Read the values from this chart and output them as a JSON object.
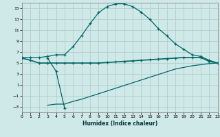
{
  "xlabel": "Humidex (Indice chaleur)",
  "bg_color": "#cfe8e8",
  "grid_color": "#b0d0d0",
  "line_color": "#006666",
  "xlim": [
    0,
    23
  ],
  "ylim": [
    -4,
    16
  ],
  "xticks": [
    0,
    1,
    2,
    3,
    4,
    5,
    6,
    7,
    8,
    9,
    10,
    11,
    12,
    13,
    14,
    15,
    16,
    17,
    18,
    19,
    20,
    21,
    22,
    23
  ],
  "yticks": [
    -3,
    -1,
    1,
    3,
    5,
    7,
    9,
    11,
    13,
    15
  ],
  "curve1_x": [
    0,
    1,
    2,
    3,
    4,
    5,
    6,
    7,
    8,
    9,
    10,
    11,
    12,
    13,
    14,
    15,
    16,
    17,
    18,
    19,
    20,
    21,
    22,
    23
  ],
  "curve1_y": [
    6.0,
    6.0,
    6.0,
    6.2,
    6.5,
    6.5,
    8.0,
    10.0,
    12.2,
    14.2,
    15.3,
    15.8,
    15.8,
    15.3,
    14.3,
    13.0,
    11.3,
    10.0,
    8.5,
    7.5,
    6.5,
    6.2,
    5.5,
    5.0
  ],
  "curve2_x": [
    0,
    1,
    2,
    3,
    4,
    5,
    6,
    7,
    8,
    9,
    10,
    11,
    12,
    13,
    14,
    15,
    16,
    17,
    18,
    19,
    20,
    21,
    22,
    23
  ],
  "curve2_y": [
    5.9,
    5.5,
    5.0,
    5.0,
    5.0,
    5.0,
    5.0,
    5.0,
    5.0,
    5.0,
    5.1,
    5.2,
    5.3,
    5.4,
    5.5,
    5.6,
    5.7,
    5.8,
    5.9,
    6.0,
    6.0,
    6.0,
    5.3,
    5.0
  ],
  "curve3_x": [
    3,
    4,
    5,
    6,
    7,
    8,
    9,
    10,
    11,
    12,
    13,
    14,
    15,
    16,
    17,
    18,
    19,
    20,
    21,
    22,
    23
  ],
  "curve3_y": [
    -2.7,
    -2.5,
    -2.5,
    -2.0,
    -1.6,
    -1.1,
    -0.6,
    -0.1,
    0.4,
    0.9,
    1.4,
    1.9,
    2.4,
    2.9,
    3.4,
    3.9,
    4.2,
    4.5,
    4.7,
    4.9,
    5.0
  ],
  "curve4_x": [
    3,
    4,
    5
  ],
  "curve4_y": [
    5.9,
    3.5,
    -3.2
  ]
}
